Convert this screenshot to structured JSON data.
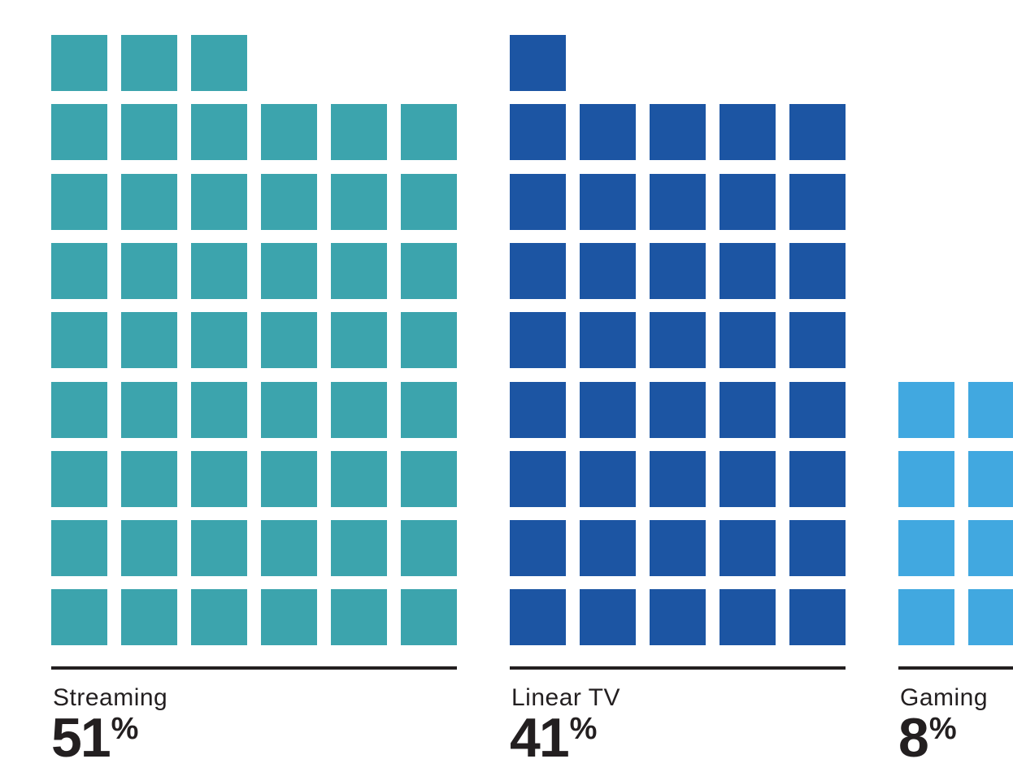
{
  "chart_data": {
    "type": "waffle",
    "title": "",
    "unit_per_square_percent": 1,
    "total_rows": 9,
    "grid_on": false,
    "legend_position": "none",
    "text_color": "#231F20",
    "divider_color": "#231F20",
    "categories": [
      {
        "label": "Streaming",
        "value": 51,
        "unit": "%",
        "columns": 6,
        "color": "#3CA4AD"
      },
      {
        "label": "Linear TV",
        "value": 41,
        "unit": "%",
        "columns": 5,
        "color": "#1C55A3"
      },
      {
        "label": "Gaming",
        "value": 8,
        "unit": "%",
        "columns": 2,
        "color": "#41A8E0"
      }
    ]
  }
}
